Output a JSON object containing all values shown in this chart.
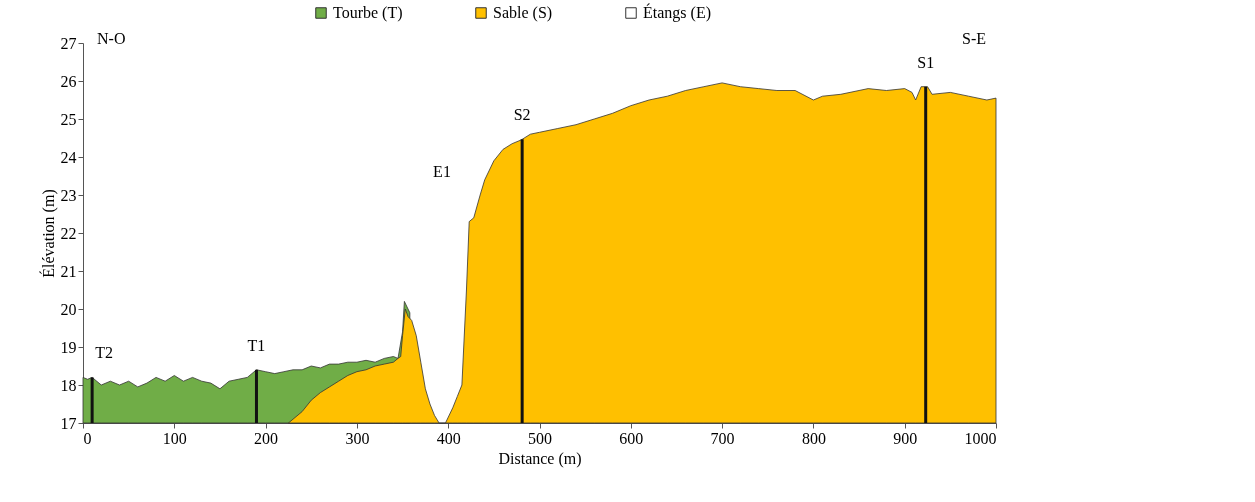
{
  "chart_data": {
    "type": "area",
    "xlabel": "Distance (m)",
    "ylabel": "Élévation (m)",
    "xlim": [
      0,
      1000
    ],
    "xticks": [
      0,
      100,
      200,
      300,
      400,
      500,
      600,
      700,
      800,
      900,
      1000
    ],
    "ylim": [
      17,
      27
    ],
    "yticks": [
      17,
      18,
      19,
      20,
      21,
      22,
      23,
      24,
      25,
      26,
      27
    ],
    "grid": false,
    "legend": "top",
    "annotations": [
      "N-O",
      "S-E",
      "E1"
    ],
    "ref_lines": [
      {
        "axis": "x",
        "value": 10,
        "label": "T2"
      },
      {
        "axis": "x",
        "value": 190,
        "label": "T1"
      },
      {
        "axis": "x",
        "value": 481,
        "label": "S2"
      },
      {
        "axis": "x",
        "value": 923,
        "label": "S1"
      }
    ],
    "series": [
      {
        "name": "Tourbe (T)",
        "color": "#70ad47",
        "x": [
          0,
          5,
          10,
          20,
          30,
          40,
          50,
          60,
          70,
          80,
          90,
          100,
          110,
          120,
          130,
          140,
          150,
          160,
          170,
          180,
          190,
          200,
          210,
          220,
          230,
          240,
          250,
          260,
          270,
          280,
          290,
          300,
          310,
          320,
          330,
          340,
          345,
          350,
          352,
          356,
          358
        ],
        "values": [
          18.2,
          18.15,
          18.2,
          18.0,
          18.1,
          18.0,
          18.1,
          17.95,
          18.05,
          18.2,
          18.1,
          18.25,
          18.1,
          18.2,
          18.1,
          18.05,
          17.9,
          18.1,
          18.15,
          18.2,
          18.4,
          18.35,
          18.3,
          18.35,
          18.4,
          18.4,
          18.5,
          18.45,
          18.55,
          18.55,
          18.6,
          18.6,
          18.65,
          18.6,
          18.7,
          18.75,
          18.7,
          19.4,
          20.2,
          20.0,
          19.9
        ]
      },
      {
        "name": "Sable (S)",
        "color": "#ffc000",
        "x": [
          225,
          240,
          250,
          260,
          270,
          280,
          290,
          300,
          310,
          320,
          330,
          340,
          345,
          348,
          350,
          353,
          356,
          360,
          365,
          370,
          375,
          380,
          385,
          390,
          397,
          405,
          410,
          415,
          420,
          423,
          428,
          435,
          440,
          450,
          460,
          470,
          480,
          490,
          500,
          520,
          540,
          560,
          580,
          600,
          620,
          640,
          660,
          680,
          700,
          720,
          740,
          760,
          780,
          800,
          810,
          830,
          850,
          860,
          880,
          900,
          908,
          912,
          918,
          925,
          930,
          950,
          970,
          990,
          1000
        ],
        "values": [
          17,
          17.3,
          17.6,
          17.8,
          17.95,
          18.1,
          18.25,
          18.35,
          18.4,
          18.5,
          18.55,
          18.6,
          18.7,
          18.75,
          19.3,
          20.0,
          19.8,
          19.7,
          19.3,
          18.6,
          17.9,
          17.5,
          17.2,
          17,
          17,
          17.4,
          17.7,
          18.0,
          20.5,
          22.3,
          22.4,
          23.0,
          23.4,
          23.9,
          24.2,
          24.35,
          24.45,
          24.6,
          24.65,
          24.75,
          24.85,
          25.0,
          25.15,
          25.35,
          25.5,
          25.6,
          25.75,
          25.85,
          25.95,
          25.85,
          25.8,
          25.75,
          25.75,
          25.5,
          25.6,
          25.65,
          25.75,
          25.8,
          25.75,
          25.8,
          25.7,
          25.5,
          25.85,
          25.85,
          25.65,
          25.7,
          25.6,
          25.5,
          25.55
        ]
      },
      {
        "name": "Étangs (E)",
        "color": "#ffffff"
      }
    ]
  }
}
